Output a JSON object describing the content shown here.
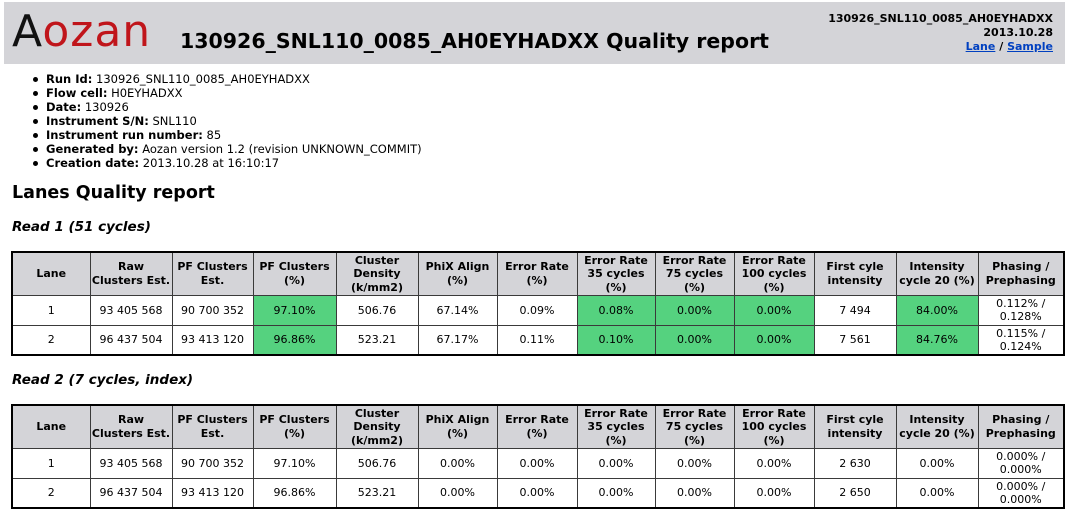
{
  "header": {
    "logo_first": "A",
    "logo_rest": "ozan",
    "title": "130926_SNL110_0085_AH0EYHADXX Quality report",
    "run_id": "130926_SNL110_0085_AH0EYHADXX",
    "date": "2013.10.28",
    "lane_link": "Lane",
    "separator": "/",
    "sample_link": "Sample"
  },
  "info": [
    {
      "label": "Run Id:",
      "value": "130926_SNL110_0085_AH0EYHADXX"
    },
    {
      "label": "Flow cell:",
      "value": "H0EYHADXX"
    },
    {
      "label": "Date:",
      "value": "130926"
    },
    {
      "label": "Instrument S/N:",
      "value": "SNL110"
    },
    {
      "label": "Instrument run number:",
      "value": "85"
    },
    {
      "label": "Generated by:",
      "value": "Aozan version 1.2 (revision UNKNOWN_COMMIT)"
    },
    {
      "label": "Creation date:",
      "value": "2013.10.28 at 16:10:17"
    }
  ],
  "section_title": "Lanes Quality report",
  "reads": [
    {
      "title": "Read 1 (51 cycles)",
      "columns": [
        "Lane",
        "Raw Clusters Est.",
        "PF Clusters Est.",
        "PF Clusters (%)",
        "Cluster Density (k/mm2)",
        "PhiX Align (%)",
        "Error Rate (%)",
        "Error Rate 35 cycles (%)",
        "Error Rate 75 cycles (%)",
        "Error Rate 100 cycles (%)",
        "First cyle intensity",
        "Intensity cycle 20 (%)",
        "Phasing / Prephasing"
      ],
      "rows": [
        [
          "1",
          "93 405 568",
          "90 700 352",
          "97.10%",
          "506.76",
          "67.14%",
          "0.09%",
          "0.08%",
          "0.00%",
          "0.00%",
          "7 494",
          "84.00%",
          "0.112% / 0.128%"
        ],
        [
          "2",
          "96 437 504",
          "93 413 120",
          "96.86%",
          "523.21",
          "67.17%",
          "0.11%",
          "0.10%",
          "0.00%",
          "0.00%",
          "7 561",
          "84.76%",
          "0.115% / 0.124%"
        ]
      ],
      "highlight_color": "#55d27f"
    },
    {
      "title": "Read 2 (7 cycles, index)",
      "columns": [
        "Lane",
        "Raw Clusters Est.",
        "PF Clusters Est.",
        "PF Clusters (%)",
        "Cluster Density (k/mm2)",
        "PhiX Align (%)",
        "Error Rate (%)",
        "Error Rate 35 cycles (%)",
        "Error Rate 75 cycles (%)",
        "Error Rate 100 cycles (%)",
        "First cyle intensity",
        "Intensity cycle 20 (%)",
        "Phasing / Prephasing"
      ],
      "rows": [
        [
          "1",
          "93 405 568",
          "90 700 352",
          "97.10%",
          "506.76",
          "0.00%",
          "0.00%",
          "0.00%",
          "0.00%",
          "0.00%",
          "2 630",
          "0.00%",
          "0.000% / 0.000%"
        ],
        [
          "2",
          "96 437 504",
          "93 413 120",
          "96.86%",
          "523.21",
          "0.00%",
          "0.00%",
          "0.00%",
          "0.00%",
          "0.00%",
          "2 650",
          "0.00%",
          "0.000% / 0.000%"
        ]
      ]
    }
  ]
}
